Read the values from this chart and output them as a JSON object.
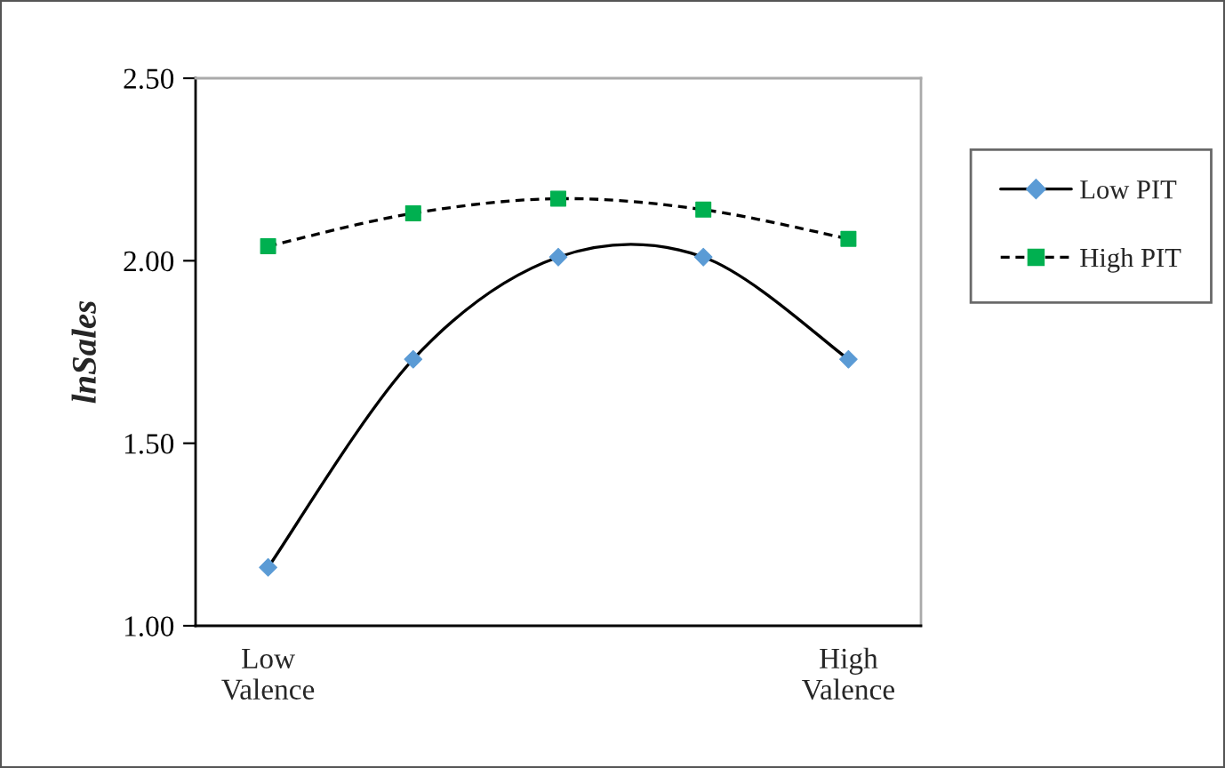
{
  "chart_data": {
    "type": "line",
    "ylabel": "lnSales",
    "categories": [
      "Low\nValence",
      null,
      null,
      null,
      "High\nValence"
    ],
    "series": [
      {
        "name": "Low PIT",
        "color": "#5b9bd5",
        "values": [
          1.16,
          1.73,
          2.01,
          2.01,
          1.73
        ],
        "marker": "diamond",
        "line_style": "solid"
      },
      {
        "name": "High PIT",
        "color": "#00b050",
        "values": [
          2.04,
          2.13,
          2.17,
          2.14,
          2.06
        ],
        "marker": "square",
        "line_style": "dashed"
      }
    ],
    "ylim": [
      1.0,
      2.5
    ],
    "yticks": [
      {
        "value": 1.0,
        "label": "1.00"
      },
      {
        "value": 1.5,
        "label": "1.50"
      },
      {
        "value": 2.0,
        "label": "2.00"
      },
      {
        "value": 2.5,
        "label": "2.50"
      }
    ],
    "grid": false,
    "legend": "right"
  }
}
